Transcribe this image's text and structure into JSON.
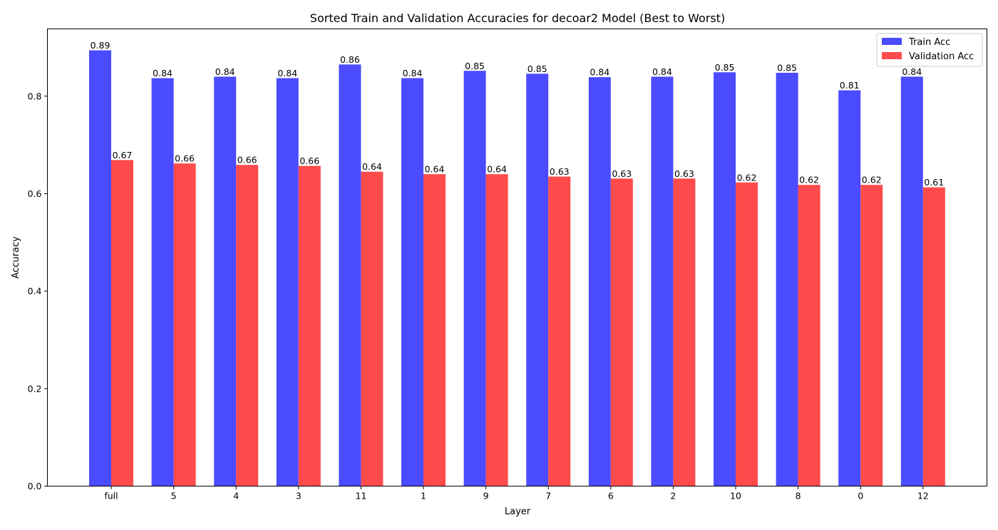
{
  "chart_data": {
    "type": "bar",
    "title": "Sorted Train and Validation Accuracies for decoar2 Model (Best to Worst)",
    "xlabel": "Layer",
    "ylabel": "Accuracy",
    "categories": [
      "full",
      "5",
      "4",
      "3",
      "11",
      "1",
      "9",
      "7",
      "6",
      "2",
      "10",
      "8",
      "0",
      "12"
    ],
    "series": [
      {
        "name": "Train Acc",
        "color": "#4b4bff",
        "values": [
          0.894,
          0.837,
          0.84,
          0.837,
          0.865,
          0.837,
          0.852,
          0.846,
          0.839,
          0.84,
          0.849,
          0.848,
          0.812,
          0.84
        ],
        "labels": [
          "0.89",
          "0.84",
          "0.84",
          "0.84",
          "0.86",
          "0.84",
          "0.85",
          "0.85",
          "0.84",
          "0.84",
          "0.85",
          "0.85",
          "0.81",
          "0.84"
        ]
      },
      {
        "name": "Validation Acc",
        "color": "#ff4b4b",
        "values": [
          0.669,
          0.662,
          0.659,
          0.657,
          0.645,
          0.64,
          0.64,
          0.635,
          0.631,
          0.631,
          0.623,
          0.618,
          0.618,
          0.613
        ],
        "labels": [
          "0.67",
          "0.66",
          "0.66",
          "0.66",
          "0.64",
          "0.64",
          "0.64",
          "0.63",
          "0.63",
          "0.63",
          "0.62",
          "0.62",
          "0.62",
          "0.61"
        ]
      }
    ],
    "ylim": [
      0,
      0.938
    ],
    "yticks": [
      0.0,
      0.2,
      0.4,
      0.6,
      0.8
    ],
    "ytick_labels": [
      "0.0",
      "0.2",
      "0.4",
      "0.6",
      "0.8"
    ],
    "grid": false,
    "legend_position": "top-right"
  }
}
